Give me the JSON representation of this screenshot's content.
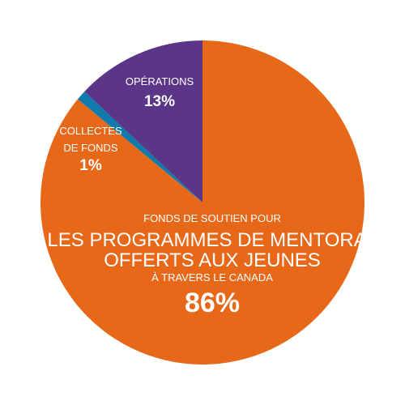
{
  "chart_data": {
    "type": "pie",
    "slices": [
      {
        "label_lines": [
          "FONDS DE SOUTIEN POUR",
          "LES PROGRAMMES DE MENTORAT",
          "OFFERTS AUX JEUNES",
          "À TRAVERS LE CANADA"
        ],
        "value": 86,
        "value_label": "86%",
        "color": "#e8681a"
      },
      {
        "label_lines": [
          "COLLECTES",
          "DE FONDS"
        ],
        "value": 1,
        "value_label": "1%",
        "color": "#0f7bab"
      },
      {
        "label_lines": [
          "OPÉRATIONS"
        ],
        "value": 13,
        "value_label": "13%",
        "color": "#5a3588"
      }
    ],
    "start_angle_deg": 0,
    "direction": "clockwise"
  }
}
